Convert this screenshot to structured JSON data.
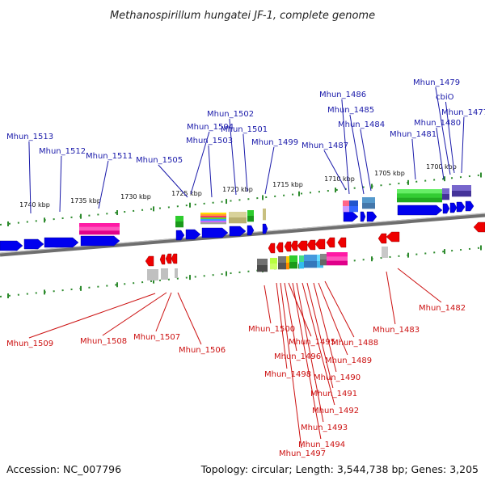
{
  "title": "Methanospirillum hungatei JF-1, complete genome",
  "footer": {
    "accession": "Accession: NC_007796",
    "topology": "Topology: circular; Length: 3,544,738 bp; Genes: 3,205"
  },
  "ticks": [
    "1740 kbp",
    "1735 kbp",
    "1730 kbp",
    "1725 kbp",
    "1720 kbp",
    "1715 kbp",
    "1710 kbp",
    "1705 kbp",
    "1700 kbp"
  ],
  "forward_labels": [
    "Mhun_1513",
    "Mhun_1512",
    "Mhun_1511",
    "Mhun_1505",
    "Mhun_1504",
    "Mhun_1503",
    "Mhun_1502",
    "Mhun_1501",
    "Mhun_1499",
    "Mhun_1487",
    "Mhun_1486",
    "Mhun_1485",
    "Mhun_1484",
    "Mhun_1481",
    "Mhun_1480",
    "Mhun_1479",
    "cbiO",
    "Mhun_1477"
  ],
  "reverse_labels": [
    "Mhun_1509",
    "Mhun_1508",
    "Mhun_1507",
    "Mhun_1506",
    "Mhun_1500",
    "Mhun_1498",
    "Mhun_1497",
    "Mhun_1496",
    "Mhun_1495",
    "Mhun_1494",
    "Mhun_1493",
    "Mhun_1492",
    "Mhun_1491",
    "Mhun_1490",
    "Mhun_1489",
    "Mhun_1488",
    "Mhun_1483",
    "Mhun_1482"
  ],
  "colors": {
    "forward": "#0000ee",
    "reverse": "#ee0000",
    "ruler": "#2e8b2e",
    "backbone": "#808080",
    "label_forward": "#1a1aaa",
    "label_reverse": "#cc1111"
  }
}
